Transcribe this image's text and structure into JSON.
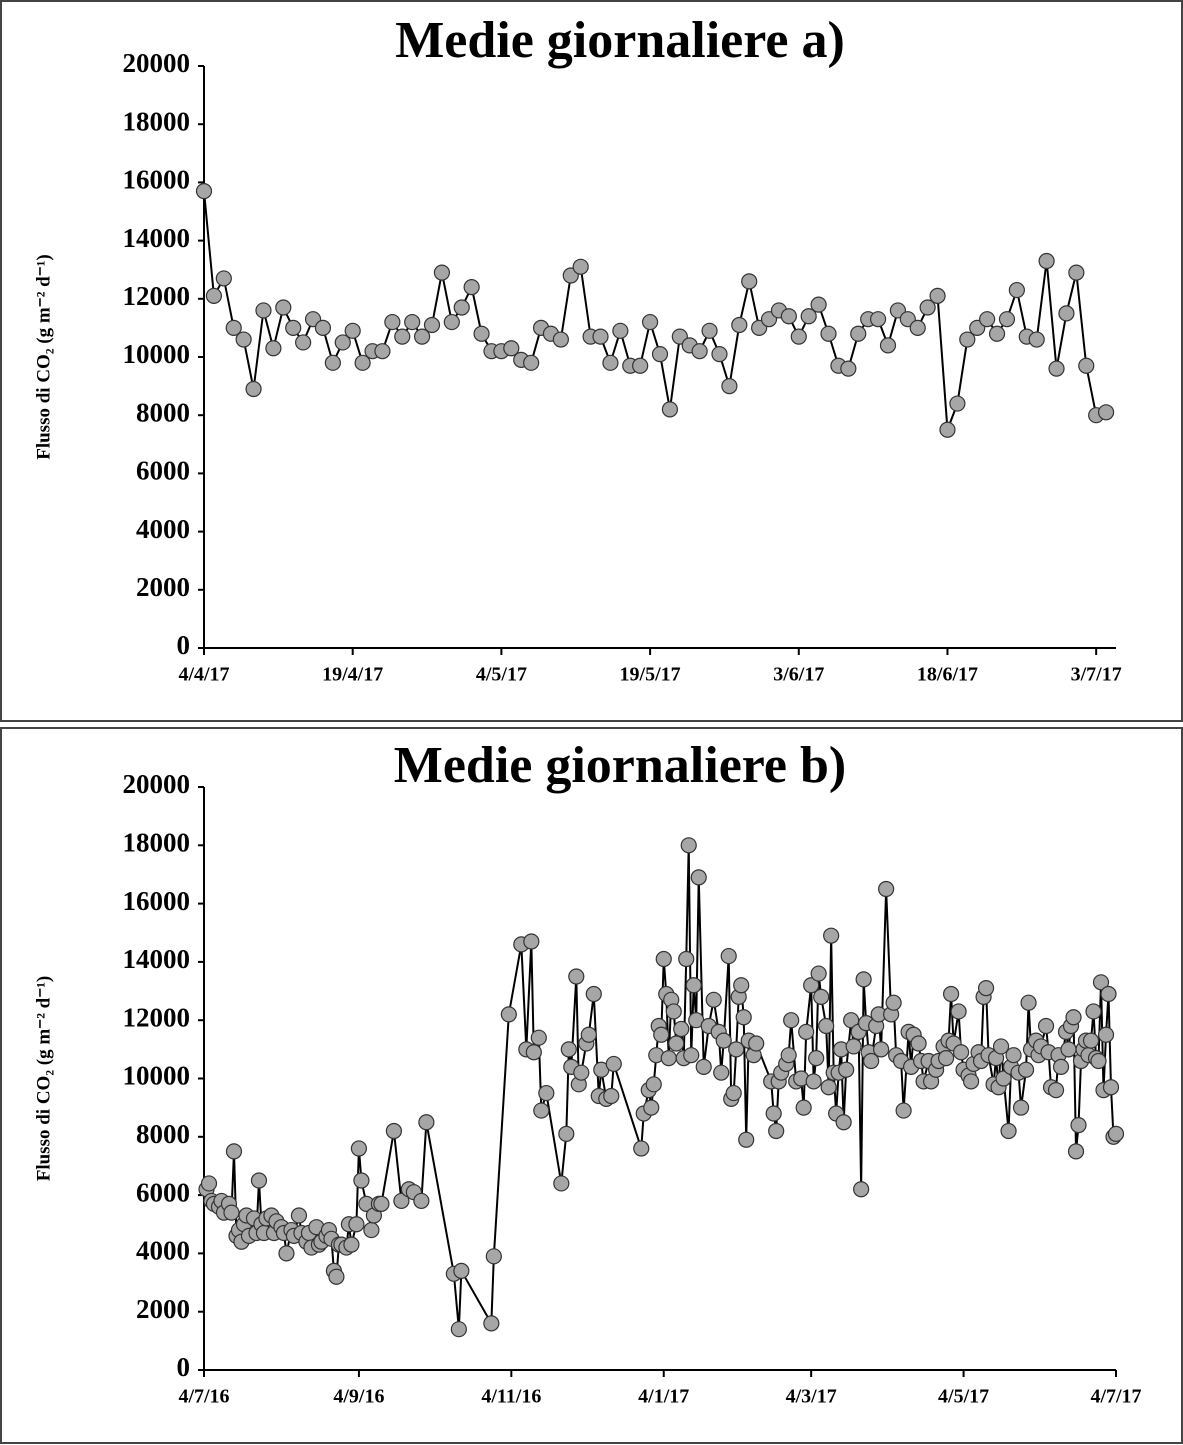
{
  "chart_data": [
    {
      "type": "line",
      "title": "Medie giornaliere a)",
      "ylabel": "Flusso di CO₂ (g m⁻² d⁻¹)",
      "line_color": "#000000",
      "marker_color": "#a6a6a6",
      "x": [
        "4/4/17",
        "5/4/17",
        "6/4/17",
        "7/4/17",
        "8/4/17",
        "9/4/17",
        "10/4/17",
        "11/4/17",
        "12/4/17",
        "13/4/17",
        "14/4/17",
        "15/4/17",
        "16/4/17",
        "17/4/17",
        "18/4/17",
        "19/4/17",
        "20/4/17",
        "21/4/17",
        "22/4/17",
        "23/4/17",
        "24/4/17",
        "25/4/17",
        "26/4/17",
        "27/4/17",
        "28/4/17",
        "29/4/17",
        "30/4/17",
        "1/5/17",
        "2/5/17",
        "3/5/17",
        "4/5/17",
        "5/5/17",
        "6/5/17",
        "7/5/17",
        "8/5/17",
        "9/5/17",
        "10/5/17",
        "11/5/17",
        "12/5/17",
        "13/5/17",
        "14/5/17",
        "15/5/17",
        "16/5/17",
        "17/5/17",
        "18/5/17",
        "19/5/17",
        "20/5/17",
        "21/5/17",
        "22/5/17",
        "23/5/17",
        "24/5/17",
        "25/5/17",
        "26/5/17",
        "27/5/17",
        "28/5/17",
        "29/5/17",
        "30/5/17",
        "31/5/17",
        "1/6/17",
        "2/6/17",
        "3/6/17",
        "4/6/17",
        "5/6/17",
        "6/6/17",
        "7/6/17",
        "8/6/17",
        "9/6/17",
        "10/6/17",
        "11/6/17",
        "12/6/17",
        "13/6/17",
        "14/6/17",
        "15/6/17",
        "16/6/17",
        "17/6/17",
        "18/6/17",
        "19/6/17",
        "20/6/17",
        "21/6/17",
        "22/6/17",
        "23/6/17",
        "24/6/17",
        "25/6/17",
        "26/6/17",
        "27/6/17",
        "28/6/17",
        "29/6/17",
        "30/6/17",
        "1/7/17",
        "2/7/17",
        "3/7/17",
        "4/7/17"
      ],
      "values": [
        15700,
        12100,
        12700,
        11000,
        10600,
        8900,
        11600,
        10300,
        11700,
        11000,
        10500,
        11300,
        11000,
        9800,
        10500,
        10900,
        9800,
        10200,
        10200,
        11200,
        10700,
        11200,
        10700,
        11100,
        12900,
        11200,
        11700,
        12400,
        10800,
        10200,
        10200,
        10300,
        9900,
        9800,
        11000,
        10800,
        10600,
        12800,
        13100,
        10700,
        10700,
        9800,
        10900,
        9700,
        9700,
        11200,
        10100,
        8200,
        10700,
        10400,
        10200,
        10900,
        10100,
        9000,
        11100,
        12600,
        11000,
        11300,
        11600,
        11400,
        10700,
        11400,
        11800,
        10800,
        9700,
        9600,
        10800,
        11300,
        11300,
        10400,
        11600,
        11300,
        11000,
        11700,
        12100,
        7500,
        8400,
        10600,
        11000,
        11300,
        10800,
        11300,
        12300,
        10700,
        10600,
        13300,
        9600,
        11500,
        12900,
        9700,
        8000,
        8100
      ],
      "xlim": [
        "4/4/17",
        "5/7/17"
      ],
      "xticks": [
        "4/4/17",
        "19/4/17",
        "4/5/17",
        "19/5/17",
        "3/6/17",
        "18/6/17",
        "3/7/17"
      ],
      "ylim": [
        0,
        20000
      ],
      "yticks": [
        0,
        2000,
        4000,
        6000,
        8000,
        10000,
        12000,
        14000,
        16000,
        18000,
        20000
      ]
    },
    {
      "type": "line",
      "title": "Medie giornaliere b)",
      "ylabel": "Flusso di CO₂ (g m⁻² d⁻¹)",
      "line_color": "#000000",
      "marker_color": "#a6a6a6",
      "x": [
        "5/7/16",
        "6/7/16",
        "7/7/16",
        "8/7/16",
        "10/7/16",
        "11/7/16",
        "12/7/16",
        "14/7/16",
        "15/7/16",
        "16/7/16",
        "17/7/16",
        "18/7/16",
        "19/7/16",
        "20/7/16",
        "21/7/16",
        "22/7/16",
        "24/7/16",
        "25/7/16",
        "26/7/16",
        "27/7/16",
        "28/7/16",
        "29/7/16",
        "31/7/16",
        "1/8/16",
        "2/8/16",
        "4/8/16",
        "5/8/16",
        "6/8/16",
        "8/8/16",
        "9/8/16",
        "11/8/16",
        "12/8/16",
        "14/8/16",
        "15/8/16",
        "16/8/16",
        "18/8/16",
        "19/8/16",
        "20/8/16",
        "22/8/16",
        "23/8/16",
        "24/8/16",
        "25/8/16",
        "26/8/16",
        "27/8/16",
        "28/8/16",
        "30/8/16",
        "31/8/16",
        "1/9/16",
        "3/9/16",
        "4/9/16",
        "5/9/16",
        "7/9/16",
        "9/9/16",
        "10/9/16",
        "12/9/16",
        "13/9/16",
        "18/9/16",
        "21/9/16",
        "24/9/16",
        "26/9/16",
        "29/9/16",
        "1/10/16",
        "12/10/16",
        "14/10/16",
        "15/10/16",
        "27/10/16",
        "28/10/16",
        "3/11/16",
        "8/11/16",
        "10/11/16",
        "12/11/16",
        "13/11/16",
        "15/11/16",
        "16/11/16",
        "18/11/16",
        "24/11/16",
        "26/11/16",
        "27/11/16",
        "28/11/16",
        "30/11/16",
        "1/12/16",
        "2/12/16",
        "4/12/16",
        "5/12/16",
        "7/12/16",
        "9/12/16",
        "10/12/16",
        "12/12/16",
        "14/12/16",
        "15/12/16",
        "26/12/16",
        "27/12/16",
        "29/12/16",
        "30/12/16",
        "31/12/16",
        "1/1/17",
        "2/1/17",
        "3/1/17",
        "4/1/17",
        "5/1/17",
        "6/1/17",
        "7/1/17",
        "8/1/17",
        "9/1/17",
        "11/1/17",
        "12/1/17",
        "13/1/17",
        "14/1/17",
        "15/1/17",
        "16/1/17",
        "17/1/17",
        "18/1/17",
        "20/1/17",
        "22/1/17",
        "24/1/17",
        "26/1/17",
        "27/1/17",
        "28/1/17",
        "30/1/17",
        "31/1/17",
        "1/2/17",
        "2/2/17",
        "3/2/17",
        "4/2/17",
        "5/2/17",
        "6/2/17",
        "7/2/17",
        "9/2/17",
        "10/2/17",
        "16/2/17",
        "17/2/17",
        "18/2/17",
        "19/2/17",
        "20/2/17",
        "22/2/17",
        "23/2/17",
        "24/2/17",
        "26/2/17",
        "28/2/17",
        "1/3/17",
        "2/3/17",
        "4/3/17",
        "5/3/17",
        "6/3/17",
        "7/3/17",
        "8/3/17",
        "10/3/17",
        "11/3/17",
        "12/3/17",
        "13/3/17",
        "14/3/17",
        "15/3/17",
        "16/3/17",
        "17/3/17",
        "18/3/17",
        "20/3/17",
        "21/3/17",
        "23/3/17",
        "24/3/17",
        "25/3/17",
        "26/3/17",
        "27/3/17",
        "28/3/17",
        "30/3/17",
        "31/3/17",
        "1/4/17",
        "3/4/17",
        "5/4/17",
        "6/4/17",
        "7/4/17",
        "9/4/17",
        "10/4/17",
        "12/4/17",
        "13/4/17",
        "14/4/17",
        "16/4/17",
        "17/4/17",
        "18/4/17",
        "20/4/17",
        "21/4/17",
        "23/4/17",
        "24/4/17",
        "26/4/17",
        "27/4/17",
        "28/4/17",
        "29/4/17",
        "30/4/17",
        "2/5/17",
        "3/5/17",
        "4/5/17",
        "6/5/17",
        "7/5/17",
        "8/5/17",
        "10/5/17",
        "11/5/17",
        "12/5/17",
        "13/5/17",
        "14/5/17",
        "16/5/17",
        "17/5/17",
        "18/5/17",
        "19/5/17",
        "20/5/17",
        "22/5/17",
        "23/5/17",
        "24/5/17",
        "26/5/17",
        "27/5/17",
        "29/5/17",
        "30/5/17",
        "31/5/17",
        "2/6/17",
        "3/6/17",
        "4/6/17",
        "6/6/17",
        "7/6/17",
        "8/6/17",
        "10/6/17",
        "11/6/17",
        "12/6/17",
        "14/6/17",
        "15/6/17",
        "16/6/17",
        "17/6/17",
        "18/6/17",
        "19/6/17",
        "20/6/17",
        "21/6/17",
        "22/6/17",
        "23/6/17",
        "24/6/17",
        "25/6/17",
        "26/6/17",
        "27/6/17",
        "28/6/17",
        "29/6/17",
        "30/6/17",
        "1/7/17",
        "2/7/17",
        "3/7/17",
        "4/7/17"
      ],
      "values": [
        6200,
        6400,
        5800,
        5700,
        5600,
        5800,
        5400,
        5700,
        5400,
        7500,
        4600,
        4800,
        4400,
        5000,
        5300,
        4600,
        5200,
        4700,
        6500,
        5000,
        4700,
        5200,
        5300,
        4700,
        5100,
        4900,
        4700,
        4000,
        4800,
        4600,
        5300,
        4700,
        4400,
        4700,
        4200,
        4900,
        4300,
        4400,
        4600,
        4800,
        4500,
        3400,
        3200,
        4300,
        4300,
        4200,
        5000,
        4300,
        5000,
        7600,
        6500,
        5700,
        4800,
        5300,
        5700,
        5700,
        8200,
        5800,
        6200,
        6100,
        5800,
        8500,
        3300,
        1400,
        3400,
        1600,
        3900,
        12200,
        14600,
        11000,
        14700,
        10900,
        11400,
        8900,
        9500,
        6400,
        8100,
        11000,
        10400,
        13500,
        9800,
        10200,
        11200,
        11500,
        12900,
        9400,
        10300,
        9300,
        9400,
        10500,
        7600,
        8800,
        9600,
        9000,
        9800,
        10800,
        11800,
        11500,
        14100,
        12900,
        10700,
        12700,
        12300,
        11200,
        11700,
        10700,
        14100,
        18000,
        10800,
        13200,
        12000,
        16900,
        10400,
        11800,
        12700,
        11600,
        10200,
        11300,
        14200,
        9300,
        9500,
        11000,
        12800,
        13200,
        12100,
        7900,
        11300,
        10800,
        11200,
        9900,
        8800,
        8200,
        9900,
        10200,
        10500,
        10800,
        12000,
        9900,
        10000,
        9000,
        11600,
        13200,
        9900,
        10700,
        13600,
        12800,
        11800,
        9700,
        14900,
        10200,
        8800,
        10200,
        11000,
        8500,
        10300,
        12000,
        11100,
        11600,
        6200,
        13400,
        11900,
        10900,
        10600,
        11800,
        12200,
        11000,
        16500,
        12200,
        12600,
        10800,
        10600,
        8900,
        11600,
        10400,
        11500,
        11200,
        10600,
        9900,
        10600,
        9900,
        10300,
        10600,
        11100,
        10700,
        11300,
        12900,
        11200,
        12300,
        10900,
        10300,
        10100,
        9900,
        10500,
        10900,
        10600,
        12800,
        13100,
        10800,
        9800,
        10700,
        9700,
        11100,
        10000,
        8200,
        10400,
        10800,
        10200,
        9000,
        10300,
        12600,
        11000,
        11300,
        10800,
        11100,
        11800,
        10900,
        9700,
        9600,
        10800,
        10400,
        11600,
        11000,
        11800,
        12100,
        7500,
        8400,
        10600,
        11000,
        11300,
        10800,
        11300,
        12300,
        10700,
        10600,
        13300,
        9600,
        11500,
        12900,
        9700,
        8000,
        8100
      ],
      "xlim": [
        "4/7/16",
        "4/7/17"
      ],
      "xticks": [
        "4/7/16",
        "4/9/16",
        "4/11/16",
        "4/1/17",
        "4/3/17",
        "4/5/17",
        "4/7/17"
      ],
      "ylim": [
        0,
        20000
      ],
      "yticks": [
        0,
        2000,
        4000,
        6000,
        8000,
        10000,
        12000,
        14000,
        16000,
        18000,
        20000
      ]
    }
  ]
}
